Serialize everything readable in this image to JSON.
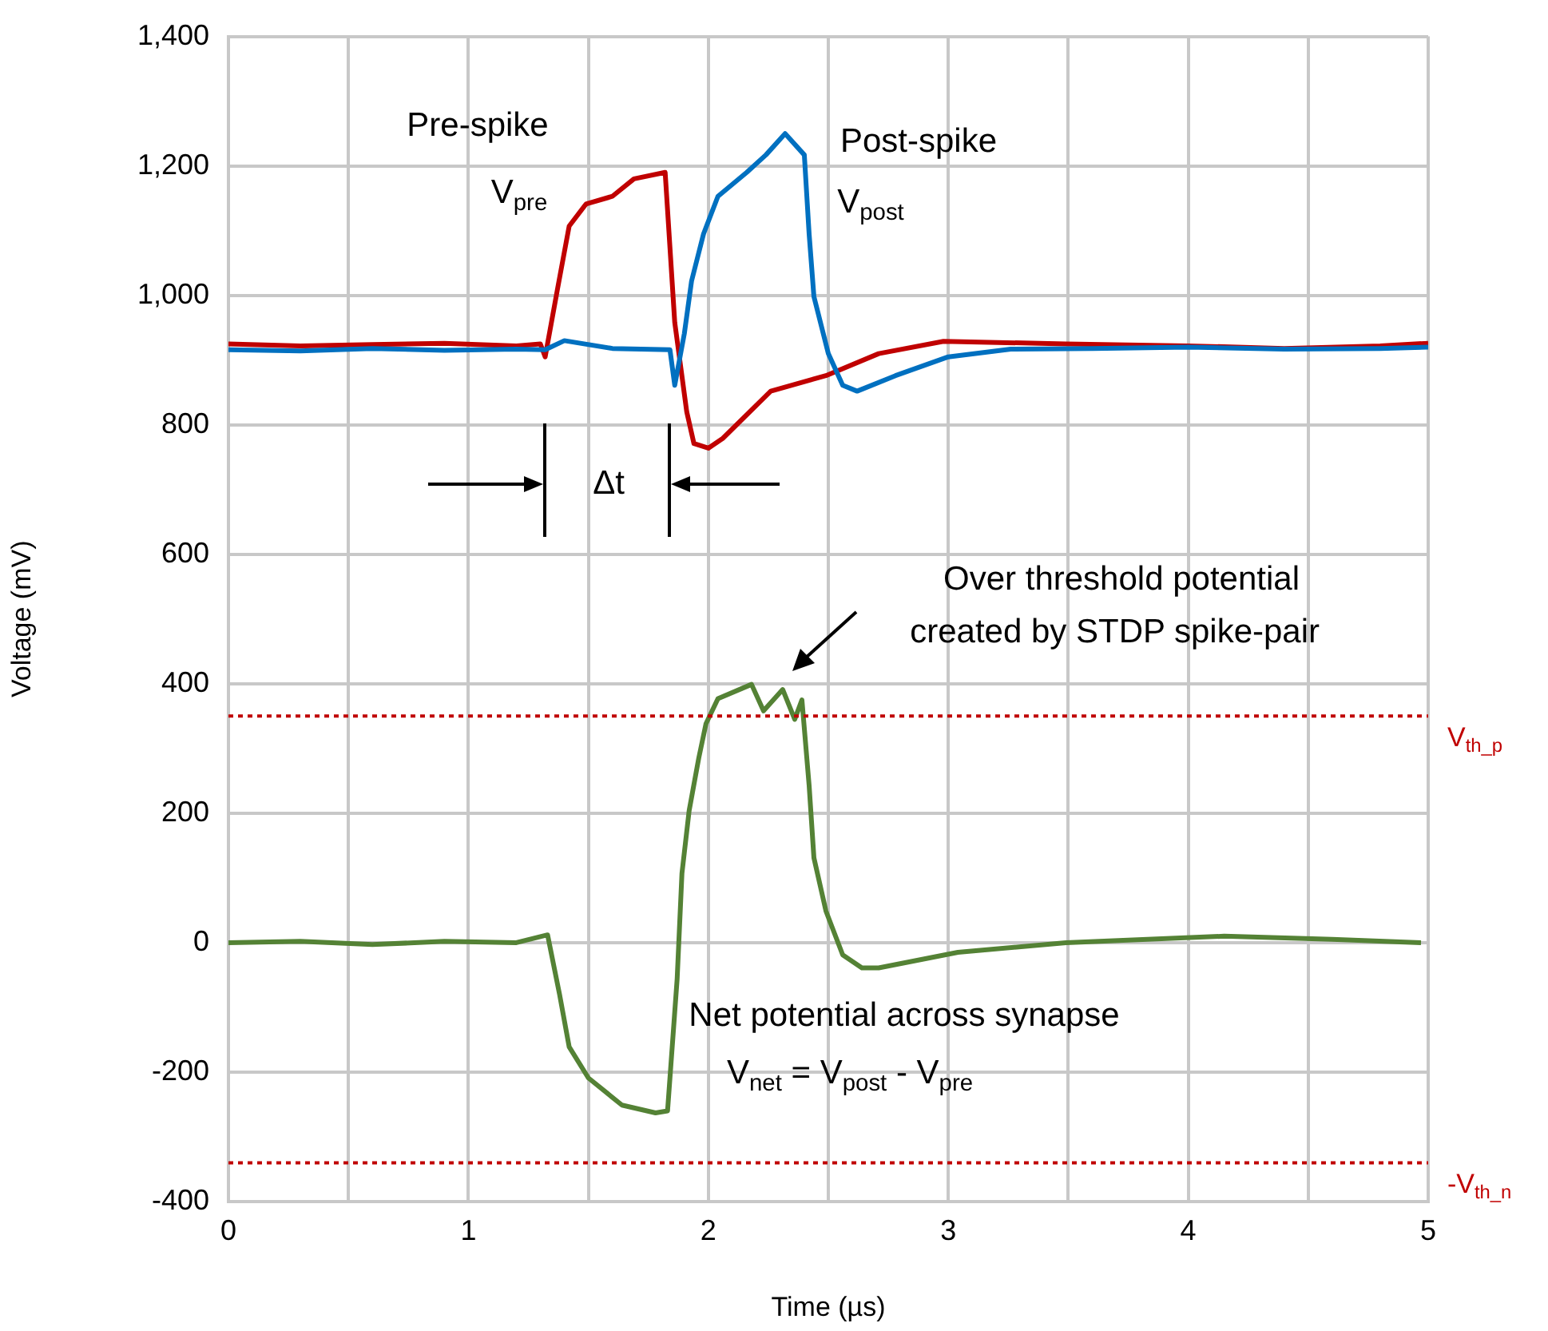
{
  "chart_data": {
    "type": "line",
    "xlabel": "Time (µs)",
    "ylabel": "Voltage (mV)",
    "xlim": [
      0,
      5
    ],
    "ylim": [
      -400,
      1400
    ],
    "xticks": [
      0,
      {
        "value": 0.5,
        "label": null
      },
      1,
      {
        "value": 1.5,
        "label": null
      },
      2,
      {
        "value": 2.5,
        "label": null
      },
      3,
      {
        "value": 3.5,
        "label": null
      },
      4,
      {
        "value": 4.5,
        "label": null
      },
      5
    ],
    "yticks": [
      -400,
      -200,
      0,
      200,
      400,
      600,
      800,
      {
        "value": 1000,
        "label": "1,000"
      },
      {
        "value": 1200,
        "label": "1,200"
      },
      {
        "value": 1400,
        "label": "1,400"
      }
    ],
    "grid": true,
    "legend": false,
    "marker": "none",
    "line_style": "solid",
    "series": [
      {
        "color": "#0070c0",
        "x": [
          0,
          0.3,
          0.6,
          0.9,
          1.2,
          1.32,
          1.4,
          1.6,
          1.84,
          1.86,
          1.9,
          1.93,
          1.98,
          2.04,
          2.16,
          2.24,
          2.32,
          2.4,
          2.42,
          2.44,
          2.5,
          2.56,
          2.62,
          2.78,
          3.0,
          3.26,
          3.6,
          4.0,
          4.4,
          4.8,
          5
        ],
        "values": [
          916,
          914,
          918,
          915,
          917,
          916,
          930,
          918,
          916,
          861,
          941,
          1022,
          1095,
          1153,
          1190,
          1217,
          1250,
          1217,
          1095,
          998,
          910,
          861,
          852,
          876,
          905,
          917,
          918,
          920,
          917,
          918,
          920
        ]
      },
      {
        "color": "#c00000",
        "x": [
          0,
          0.3,
          0.6,
          0.9,
          1.2,
          1.3,
          1.32,
          1.37,
          1.42,
          1.49,
          1.6,
          1.69,
          1.82,
          1.86,
          1.91,
          1.94,
          2.0,
          2.06,
          2.26,
          2.49,
          2.71,
          2.98,
          3.49,
          4.0,
          4.4,
          4.8,
          5
        ],
        "values": [
          925,
          922,
          924,
          926,
          922,
          925,
          905,
          1007,
          1107,
          1141,
          1153,
          1180,
          1190,
          958,
          820,
          771,
          764,
          779,
          852,
          876,
          910,
          929,
          925,
          922,
          918,
          922,
          926
        ]
      },
      {
        "color": "#548235",
        "x": [
          0,
          0.3,
          0.6,
          0.9,
          1.2,
          1.33,
          1.38,
          1.42,
          1.5,
          1.64,
          1.78,
          1.83,
          1.87,
          1.89,
          1.92,
          1.96,
          1.99,
          2.04,
          2.18,
          2.23,
          2.31,
          2.36,
          2.39,
          2.42,
          2.44,
          2.49,
          2.56,
          2.64,
          2.71,
          3.04,
          3.49,
          4.15,
          4.6,
          4.97
        ],
        "values": [
          0,
          2,
          -3,
          2,
          0,
          12,
          -80,
          -161,
          -209,
          -251,
          -263,
          -260,
          -56,
          107,
          204,
          285,
          338,
          377,
          399,
          358,
          391,
          345,
          375,
          243,
          131,
          49,
          -19,
          -39,
          -39,
          -15,
          0,
          10,
          5,
          0
        ]
      }
    ],
    "ref_lines": [
      {
        "axis": "y",
        "value": 350,
        "label": "V$_{th_p}$",
        "color": "#c00000",
        "line_style": "dotted"
      },
      {
        "axis": "y",
        "value": -340,
        "label": "-V$_{th_n}$",
        "color": "#c00000",
        "line_style": "dotted"
      }
    ],
    "annotations": [
      "Pre-spike",
      "V$_{pre}$",
      "Post-spike",
      "V$_{post}$",
      "Δt",
      "Over threshold potential",
      "created by STDP spike-pair",
      "Net potential across synapse",
      "V$_{net}$ = V$_{post}$ - V$_{pre}$"
    ]
  }
}
